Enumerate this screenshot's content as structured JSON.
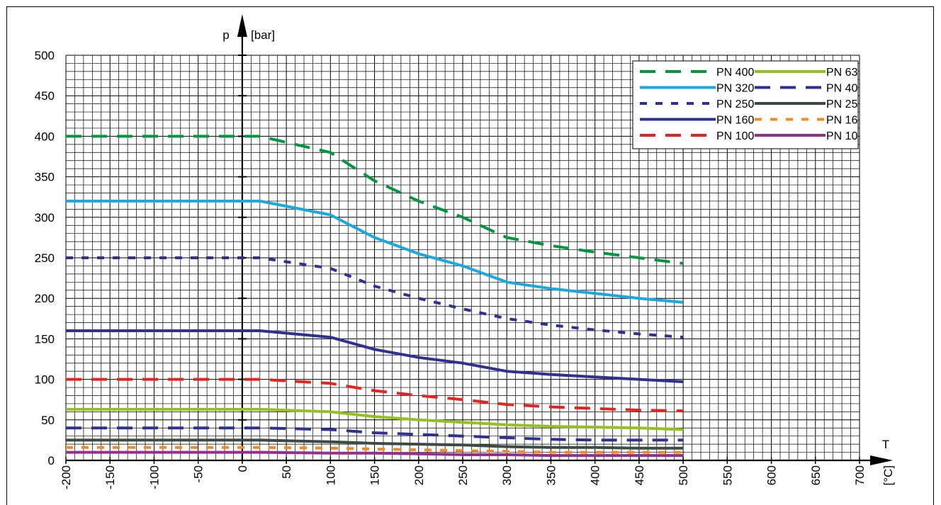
{
  "chart_data": {
    "type": "line",
    "title": "",
    "ylabel": "p",
    "yunit": "[bar]",
    "xlabel": "T",
    "xunit": "[°C]",
    "xlim": [
      -200,
      700
    ],
    "ylim": [
      0,
      500
    ],
    "x_ticks": [
      "-200",
      "-150",
      "-100",
      "-50",
      "0",
      "50",
      "100",
      "150",
      "200",
      "250",
      "300",
      "350",
      "400",
      "450",
      "500",
      "550",
      "600",
      "650",
      "700"
    ],
    "y_ticks": [
      "0",
      "50",
      "100",
      "150",
      "200",
      "250",
      "300",
      "350",
      "400",
      "450",
      "500"
    ],
    "grid": true,
    "legend_placement": "top-right",
    "series": [
      {
        "name": "PN 400",
        "color": "#009640",
        "style": "dashed",
        "points": [
          [
            -200,
            400
          ],
          [
            20,
            400
          ],
          [
            100,
            380
          ],
          [
            150,
            345
          ],
          [
            200,
            320
          ],
          [
            250,
            300
          ],
          [
            300,
            275
          ],
          [
            350,
            265
          ],
          [
            400,
            257
          ],
          [
            450,
            250
          ],
          [
            500,
            243
          ]
        ]
      },
      {
        "name": "PN 320",
        "color": "#1ba8e0",
        "style": "solid",
        "points": [
          [
            -200,
            320
          ],
          [
            20,
            320
          ],
          [
            100,
            303
          ],
          [
            150,
            275
          ],
          [
            200,
            255
          ],
          [
            250,
            240
          ],
          [
            300,
            220
          ],
          [
            350,
            212
          ],
          [
            400,
            206
          ],
          [
            450,
            200
          ],
          [
            500,
            195
          ]
        ]
      },
      {
        "name": "PN 250",
        "color": "#2e3192",
        "style": "dotted",
        "points": [
          [
            -200,
            250
          ],
          [
            20,
            250
          ],
          [
            100,
            237
          ],
          [
            150,
            215
          ],
          [
            200,
            200
          ],
          [
            250,
            187
          ],
          [
            300,
            175
          ],
          [
            350,
            167
          ],
          [
            400,
            161
          ],
          [
            450,
            156
          ],
          [
            500,
            152
          ]
        ]
      },
      {
        "name": "PN 160",
        "color": "#2e3192",
        "style": "solid",
        "points": [
          [
            -200,
            160
          ],
          [
            20,
            160
          ],
          [
            100,
            152
          ],
          [
            150,
            137
          ],
          [
            200,
            127
          ],
          [
            250,
            120
          ],
          [
            300,
            110
          ],
          [
            350,
            106
          ],
          [
            400,
            103
          ],
          [
            450,
            100
          ],
          [
            500,
            97
          ]
        ]
      },
      {
        "name": "PN 100",
        "color": "#e52421",
        "style": "dashed",
        "points": [
          [
            -200,
            100
          ],
          [
            20,
            100
          ],
          [
            100,
            95
          ],
          [
            150,
            86
          ],
          [
            200,
            80
          ],
          [
            250,
            75
          ],
          [
            300,
            69
          ],
          [
            350,
            66
          ],
          [
            400,
            64
          ],
          [
            450,
            62
          ],
          [
            500,
            61
          ]
        ]
      },
      {
        "name": "PN 63",
        "color": "#95c11f",
        "style": "solid",
        "points": [
          [
            -200,
            63
          ],
          [
            20,
            63
          ],
          [
            100,
            60
          ],
          [
            150,
            54
          ],
          [
            200,
            50
          ],
          [
            250,
            47
          ],
          [
            300,
            44
          ],
          [
            350,
            42
          ],
          [
            400,
            41
          ],
          [
            450,
            40
          ],
          [
            500,
            38
          ]
        ]
      },
      {
        "name": "PN 40",
        "color": "#2e3192",
        "style": "dashed",
        "points": [
          [
            -200,
            40
          ],
          [
            20,
            40
          ],
          [
            100,
            38
          ],
          [
            150,
            34
          ],
          [
            200,
            32
          ],
          [
            250,
            30
          ],
          [
            300,
            28
          ],
          [
            350,
            26
          ],
          [
            400,
            25
          ],
          [
            450,
            25
          ],
          [
            500,
            25
          ]
        ]
      },
      {
        "name": "PN 25",
        "color": "#3d4a42",
        "style": "solid",
        "points": [
          [
            -200,
            25
          ],
          [
            20,
            25
          ],
          [
            100,
            23
          ],
          [
            150,
            21
          ],
          [
            200,
            20
          ],
          [
            250,
            19
          ],
          [
            300,
            17
          ],
          [
            350,
            16
          ],
          [
            400,
            16
          ],
          [
            450,
            15
          ],
          [
            500,
            15
          ]
        ]
      },
      {
        "name": "PN 16",
        "color": "#f08a24",
        "style": "dotted",
        "points": [
          [
            -200,
            16
          ],
          [
            20,
            16
          ],
          [
            100,
            15
          ],
          [
            150,
            14
          ],
          [
            200,
            13
          ],
          [
            250,
            12
          ],
          [
            300,
            11
          ],
          [
            350,
            10
          ],
          [
            400,
            10
          ],
          [
            450,
            10
          ],
          [
            500,
            10
          ]
        ]
      },
      {
        "name": "PN 10",
        "color": "#93308f",
        "style": "solid",
        "points": [
          [
            -200,
            10
          ],
          [
            20,
            10
          ],
          [
            100,
            9
          ],
          [
            150,
            9
          ],
          [
            200,
            8
          ],
          [
            250,
            7
          ],
          [
            300,
            7
          ],
          [
            350,
            6
          ],
          [
            400,
            6
          ],
          [
            450,
            6
          ],
          [
            500,
            6
          ]
        ]
      }
    ]
  }
}
